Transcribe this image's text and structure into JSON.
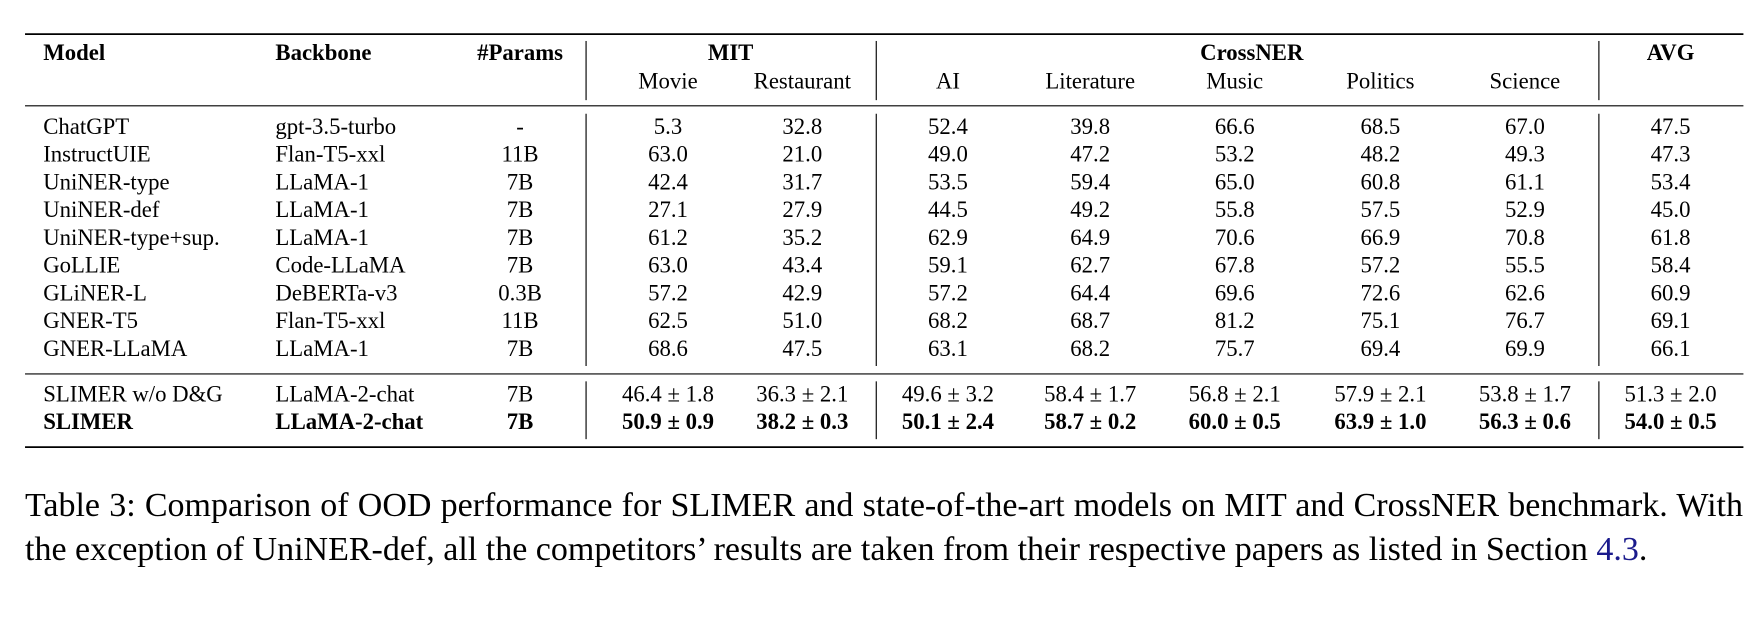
{
  "table": {
    "columns": [
      "Model",
      "Backbone",
      "#Params"
    ],
    "groups": [
      {
        "name": "MIT",
        "columns": [
          "Movie",
          "Restaurant"
        ]
      },
      {
        "name": "CrossNER",
        "columns": [
          "AI",
          "Literature",
          "Music",
          "Politics",
          "Science"
        ]
      },
      {
        "name": "AVG",
        "columns": []
      }
    ],
    "sections": [
      [
        {
          "cells": [
            "ChatGPT",
            "gpt-3.5-turbo",
            "-",
            "5.3",
            "32.8",
            "52.4",
            "39.8",
            "66.6",
            "68.5",
            "67.0",
            "47.5"
          ]
        },
        {
          "cells": [
            "InstructUIE",
            "Flan-T5-xxl",
            "11B",
            "63.0",
            "21.0",
            "49.0",
            "47.2",
            "53.2",
            "48.2",
            "49.3",
            "47.3"
          ]
        },
        {
          "cells": [
            "UniNER-type",
            "LLaMA-1",
            "7B",
            "42.4",
            "31.7",
            "53.5",
            "59.4",
            "65.0",
            "60.8",
            "61.1",
            "53.4"
          ]
        },
        {
          "cells": [
            "UniNER-def",
            "LLaMA-1",
            "7B",
            "27.1",
            "27.9",
            "44.5",
            "49.2",
            "55.8",
            "57.5",
            "52.9",
            "45.0"
          ]
        },
        {
          "cells": [
            "UniNER-type+sup.",
            "LLaMA-1",
            "7B",
            "61.2",
            "35.2",
            "62.9",
            "64.9",
            "70.6",
            "66.9",
            "70.8",
            "61.8"
          ]
        },
        {
          "cells": [
            "GoLLIE",
            "Code-LLaMA",
            "7B",
            "63.0",
            "43.4",
            "59.1",
            "62.7",
            "67.8",
            "57.2",
            "55.5",
            "58.4"
          ]
        },
        {
          "cells": [
            "GLiNER-L",
            "DeBERTa-v3",
            "0.3B",
            "57.2",
            "42.9",
            "57.2",
            "64.4",
            "69.6",
            "72.6",
            "62.6",
            "60.9"
          ]
        },
        {
          "cells": [
            "GNER-T5",
            "Flan-T5-xxl",
            "11B",
            "62.5",
            "51.0",
            "68.2",
            "68.7",
            "81.2",
            "75.1",
            "76.7",
            "69.1"
          ]
        },
        {
          "cells": [
            "GNER-LLaMA",
            "LLaMA-1",
            "7B",
            "68.6",
            "47.5",
            "63.1",
            "68.2",
            "75.7",
            "69.4",
            "69.9",
            "66.1"
          ]
        }
      ],
      [
        {
          "cells": [
            "SLIMER w/o D&G",
            "LLaMA-2-chat",
            "7B",
            "46.4 ± 1.8",
            "36.3 ± 2.1",
            "49.6 ± 3.2",
            "58.4 ± 1.7",
            "56.8 ± 2.1",
            "57.9 ± 2.1",
            "53.8 ± 1.7",
            "51.3 ± 2.0"
          ]
        },
        {
          "cells": [
            "SLIMER",
            "LLaMA-2-chat",
            "7B",
            "50.9 ± 0.9",
            "38.2 ± 0.3",
            "50.1 ± 2.4",
            "58.7 ± 0.2",
            "60.0 ± 0.5",
            "63.9 ± 1.0",
            "56.3 ± 0.6",
            "54.0 ± 0.5"
          ],
          "bold": true
        }
      ]
    ]
  },
  "caption": [
    {
      "text": "Table 3: Comparison of OOD performance for SLIMER and state-of-the-art models on MIT and CrossNER benchmark. With the exception of UniNER-def, all the competitors’ results are taken from their respective papers as listed in Section "
    },
    {
      "text": "4.3",
      "link": true
    },
    {
      "text": "."
    }
  ]
}
